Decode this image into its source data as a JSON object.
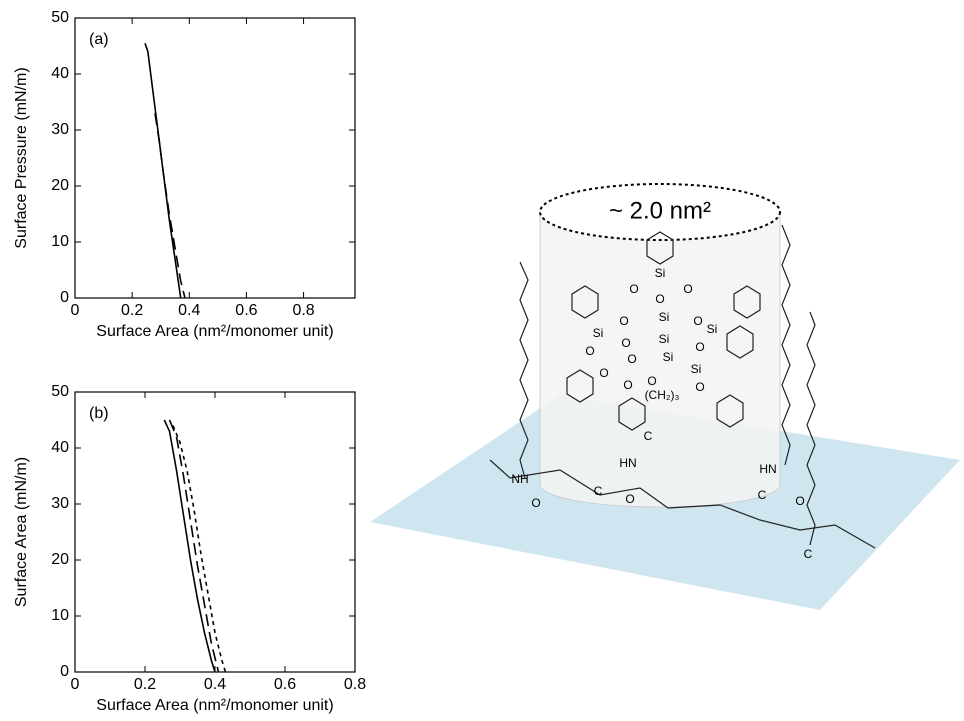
{
  "chart_data": [
    {
      "type": "line",
      "annotation": "(a)",
      "x_label": "Surface Area (nm²/monomer unit)",
      "y_label": "Surface Pressure (mN/m)",
      "xlim": [
        0,
        0.98
      ],
      "xticks": [
        0,
        0.2,
        0.4,
        0.6,
        0.8
      ],
      "ylim": [
        0,
        50
      ],
      "yticks": [
        0,
        10,
        20,
        30,
        40,
        50
      ],
      "series": [
        {
          "color": "#000000",
          "style": "solid",
          "x": [
            0.245,
            0.255,
            0.27,
            0.29,
            0.31,
            0.33,
            0.35,
            0.37
          ],
          "values": [
            45.5,
            44,
            38,
            30,
            22,
            14,
            7,
            0
          ]
        },
        {
          "color": "#000000",
          "style": "dashed",
          "x": [
            0.28,
            0.295,
            0.31,
            0.33,
            0.35,
            0.37,
            0.385
          ],
          "values": [
            33,
            28,
            22,
            15,
            9,
            3,
            0
          ]
        }
      ]
    },
    {
      "type": "line",
      "annotation": "(b)",
      "x_label": "Surface Area (nm²/monomer unit)",
      "y_label": "Surface Area (mN/m)",
      "xlim": [
        0,
        0.8
      ],
      "xticks": [
        0,
        0.2,
        0.4,
        0.6,
        0.8
      ],
      "ylim": [
        0,
        50
      ],
      "yticks": [
        0,
        10,
        20,
        30,
        40,
        50
      ],
      "series": [
        {
          "color": "#000000",
          "style": "solid",
          "x": [
            0.255,
            0.27,
            0.29,
            0.31,
            0.33,
            0.35,
            0.37,
            0.39,
            0.4
          ],
          "values": [
            45,
            43,
            36,
            28,
            20,
            13,
            7,
            2,
            0
          ]
        },
        {
          "color": "#000000",
          "style": "dashed",
          "x": [
            0.27,
            0.29,
            0.31,
            0.33,
            0.35,
            0.37,
            0.39,
            0.41
          ],
          "values": [
            45,
            42,
            35,
            27,
            19,
            12,
            5,
            0
          ]
        },
        {
          "color": "#000000",
          "style": "dotted",
          "x": [
            0.28,
            0.3,
            0.32,
            0.34,
            0.36,
            0.38,
            0.4,
            0.42,
            0.43
          ],
          "values": [
            44,
            41,
            36,
            29,
            21,
            14,
            7,
            2,
            0
          ]
        }
      ]
    }
  ],
  "diagram": {
    "area_label": "~ 2.0 nm²",
    "atoms": [
      "Si",
      "O",
      "O",
      "O",
      "Si",
      "O",
      "Si",
      "O",
      "Si",
      "O",
      "O",
      "Si",
      "O",
      "Si",
      "O",
      "O",
      "Si",
      "O",
      "(CH₂)₃",
      "O",
      "O",
      "C",
      "HN",
      "C",
      "O",
      "HN",
      "C",
      "O",
      "NH",
      "O",
      "C"
    ]
  }
}
